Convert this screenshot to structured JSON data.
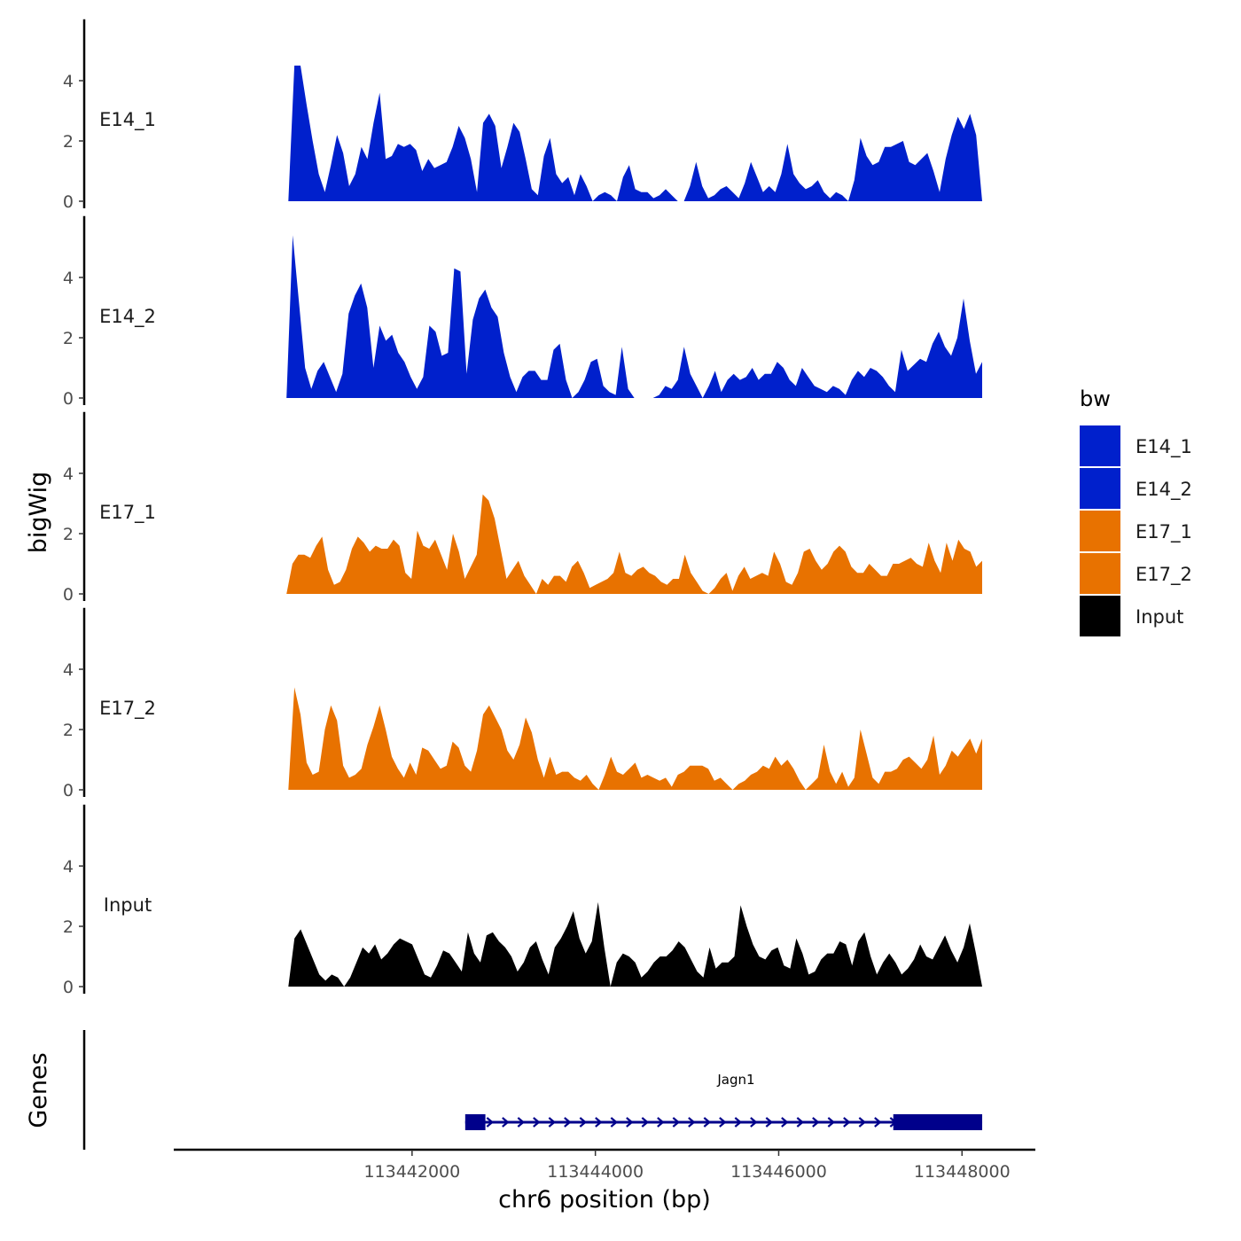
{
  "chart_data": {
    "type": "area",
    "y_axis_title": "bigWig",
    "x_axis_title": "chr6 position (bp)",
    "genes_axis_title": "Genes",
    "xlim": [
      113439400,
      113448800
    ],
    "x_ticks": [
      113442000,
      113444000,
      113446000,
      113448000
    ],
    "x_tick_labels": [
      "113442000",
      "113444000",
      "113446000",
      "113448000"
    ],
    "ylim": [
      0,
      5.8
    ],
    "y_ticks": [
      0,
      2,
      4
    ],
    "y_tick_labels": [
      "0",
      "2",
      "4"
    ],
    "colors": {
      "E14_1": "#0020CC",
      "E14_2": "#0020CC",
      "E17_1": "#E87200",
      "E17_2": "#E87200",
      "Input": "#000000",
      "gene": "#00008B"
    },
    "legend": {
      "title": "bw",
      "entries": [
        {
          "label": "E14_1",
          "color": "#0020CC"
        },
        {
          "label": "E14_2",
          "color": "#0020CC"
        },
        {
          "label": "E17_1",
          "color": "#E87200"
        },
        {
          "label": "E17_2",
          "color": "#E87200"
        },
        {
          "label": "Input",
          "color": "#000000"
        }
      ]
    },
    "series": [
      {
        "name": "E14_1",
        "x_start": 113440650,
        "x_end": 113448220,
        "values": [
          0.0,
          4.5,
          4.5,
          3.2,
          2.0,
          0.9,
          0.3,
          1.2,
          2.2,
          1.6,
          0.5,
          0.9,
          1.8,
          1.4,
          2.6,
          3.6,
          1.4,
          1.5,
          1.9,
          1.8,
          1.9,
          1.7,
          1.0,
          1.4,
          1.1,
          1.2,
          1.3,
          1.8,
          2.5,
          2.1,
          1.4,
          0.3,
          2.6,
          2.9,
          2.5,
          1.1,
          1.8,
          2.6,
          2.3,
          1.4,
          0.4,
          0.2,
          1.5,
          2.1,
          0.9,
          0.6,
          0.8,
          0.2,
          0.9,
          0.5,
          0.0,
          0.2,
          0.3,
          0.2,
          0.0,
          0.8,
          1.2,
          0.4,
          0.3,
          0.3,
          0.1,
          0.2,
          0.4,
          0.2,
          0.0,
          0.0,
          0.5,
          1.3,
          0.5,
          0.1,
          0.2,
          0.4,
          0.5,
          0.3,
          0.1,
          0.6,
          1.3,
          0.8,
          0.3,
          0.5,
          0.3,
          0.9,
          1.9,
          0.9,
          0.6,
          0.4,
          0.5,
          0.7,
          0.3,
          0.1,
          0.3,
          0.2,
          0.0,
          0.7,
          2.1,
          1.5,
          1.2,
          1.3,
          1.8,
          1.8,
          1.9,
          2.0,
          1.3,
          1.2,
          1.4,
          1.6,
          1.0,
          0.3,
          1.4,
          2.2,
          2.8,
          2.4,
          2.9,
          2.2,
          0.0
        ]
      },
      {
        "name": "E14_2",
        "x_start": 113440630,
        "x_end": 113448220,
        "values": [
          0.0,
          5.4,
          3.2,
          1.0,
          0.3,
          0.9,
          1.2,
          0.7,
          0.2,
          0.8,
          2.8,
          3.4,
          3.8,
          3.0,
          1.0,
          2.4,
          1.9,
          2.1,
          1.5,
          1.2,
          0.7,
          0.3,
          0.7,
          2.4,
          2.2,
          1.4,
          1.5,
          4.3,
          4.2,
          0.8,
          2.6,
          3.3,
          3.6,
          3.0,
          2.7,
          1.5,
          0.7,
          0.2,
          0.7,
          0.9,
          0.9,
          0.6,
          0.6,
          1.6,
          1.8,
          0.6,
          0.0,
          0.2,
          0.6,
          1.2,
          1.3,
          0.4,
          0.2,
          0.1,
          1.7,
          0.3,
          0.0,
          0.0,
          0.0,
          0.0,
          0.1,
          0.4,
          0.3,
          0.6,
          1.7,
          0.8,
          0.4,
          0.0,
          0.4,
          0.9,
          0.2,
          0.6,
          0.8,
          0.6,
          0.7,
          1.0,
          0.6,
          0.8,
          0.8,
          1.2,
          1.0,
          0.6,
          0.4,
          1.0,
          0.7,
          0.4,
          0.3,
          0.2,
          0.4,
          0.3,
          0.1,
          0.6,
          0.9,
          0.7,
          1.0,
          0.9,
          0.7,
          0.4,
          0.2,
          1.6,
          0.9,
          1.1,
          1.3,
          1.2,
          1.8,
          2.2,
          1.7,
          1.4,
          2.0,
          3.3,
          1.9,
          0.8,
          1.2
        ]
      },
      {
        "name": "E17_1",
        "x_start": 113440630,
        "x_end": 113448220,
        "values": [
          0.0,
          1.0,
          1.3,
          1.3,
          1.2,
          1.6,
          1.9,
          0.8,
          0.3,
          0.4,
          0.8,
          1.5,
          1.9,
          1.7,
          1.4,
          1.6,
          1.5,
          1.5,
          1.8,
          1.6,
          0.7,
          0.5,
          2.1,
          1.6,
          1.5,
          1.8,
          1.3,
          0.8,
          2.0,
          1.4,
          0.5,
          0.9,
          1.3,
          3.3,
          3.1,
          2.5,
          1.5,
          0.5,
          0.8,
          1.1,
          0.6,
          0.3,
          0.0,
          0.5,
          0.3,
          0.6,
          0.6,
          0.4,
          0.9,
          1.1,
          0.7,
          0.2,
          0.3,
          0.4,
          0.5,
          0.7,
          1.4,
          0.7,
          0.6,
          0.8,
          0.9,
          0.7,
          0.6,
          0.4,
          0.3,
          0.5,
          0.5,
          1.3,
          0.7,
          0.4,
          0.1,
          0.0,
          0.2,
          0.5,
          0.7,
          0.1,
          0.6,
          0.9,
          0.5,
          0.6,
          0.7,
          0.6,
          1.4,
          1.0,
          0.4,
          0.3,
          0.7,
          1.4,
          1.5,
          1.1,
          0.8,
          1.0,
          1.4,
          1.6,
          1.4,
          0.9,
          0.7,
          0.7,
          1.0,
          0.8,
          0.6,
          0.6,
          1.0,
          1.0,
          1.1,
          1.2,
          1.0,
          0.9,
          1.7,
          1.1,
          0.7,
          1.7,
          1.1,
          1.8,
          1.5,
          1.4,
          0.9,
          1.1
        ]
      },
      {
        "name": "E17_2",
        "x_start": 113440650,
        "x_end": 113448220,
        "values": [
          0.0,
          3.4,
          2.5,
          0.9,
          0.5,
          0.6,
          2.0,
          2.8,
          2.3,
          0.8,
          0.4,
          0.5,
          0.7,
          1.5,
          2.1,
          2.8,
          2.0,
          1.1,
          0.7,
          0.4,
          0.9,
          0.5,
          1.4,
          1.3,
          1.0,
          0.7,
          0.8,
          1.6,
          1.4,
          0.8,
          0.6,
          1.3,
          2.5,
          2.8,
          2.4,
          2.0,
          1.3,
          1.0,
          1.5,
          2.4,
          1.9,
          1.0,
          0.4,
          1.1,
          0.5,
          0.6,
          0.6,
          0.4,
          0.3,
          0.5,
          0.2,
          0.0,
          0.5,
          1.1,
          0.6,
          0.5,
          0.7,
          0.9,
          0.4,
          0.5,
          0.4,
          0.3,
          0.4,
          0.1,
          0.5,
          0.6,
          0.8,
          0.8,
          0.8,
          0.7,
          0.3,
          0.4,
          0.2,
          0.0,
          0.2,
          0.3,
          0.5,
          0.6,
          0.8,
          0.7,
          1.1,
          0.8,
          1.0,
          0.7,
          0.3,
          0.0,
          0.2,
          0.4,
          1.5,
          0.6,
          0.2,
          0.6,
          0.1,
          0.4,
          2.0,
          1.2,
          0.4,
          0.2,
          0.6,
          0.6,
          0.7,
          1.0,
          1.1,
          0.9,
          0.7,
          1.0,
          1.8,
          0.5,
          0.8,
          1.3,
          1.1,
          1.4,
          1.7,
          1.2,
          1.7
        ]
      },
      {
        "name": "Input",
        "x_start": 113440650,
        "x_end": 113448220,
        "values": [
          0.0,
          1.6,
          1.9,
          1.4,
          0.9,
          0.4,
          0.2,
          0.4,
          0.3,
          0.0,
          0.3,
          0.8,
          1.3,
          1.1,
          1.4,
          0.9,
          1.1,
          1.4,
          1.6,
          1.5,
          1.4,
          0.9,
          0.4,
          0.3,
          0.7,
          1.2,
          1.1,
          0.8,
          0.5,
          1.8,
          1.1,
          0.8,
          1.7,
          1.8,
          1.5,
          1.3,
          1.0,
          0.5,
          0.8,
          1.3,
          1.5,
          0.9,
          0.4,
          1.3,
          1.6,
          2.0,
          2.5,
          1.6,
          1.1,
          1.5,
          2.8,
          1.3,
          0.0,
          0.8,
          1.1,
          1.0,
          0.8,
          0.3,
          0.5,
          0.8,
          1.0,
          1.0,
          1.2,
          1.5,
          1.3,
          0.9,
          0.5,
          0.3,
          1.3,
          0.6,
          0.8,
          0.8,
          1.0,
          2.7,
          2.0,
          1.4,
          1.0,
          0.9,
          1.2,
          1.3,
          0.7,
          0.6,
          1.6,
          1.1,
          0.4,
          0.5,
          0.9,
          1.1,
          1.1,
          1.5,
          1.4,
          0.7,
          1.5,
          1.8,
          1.0,
          0.4,
          0.8,
          1.1,
          0.8,
          0.4,
          0.6,
          0.9,
          1.4,
          1.0,
          0.9,
          1.3,
          1.7,
          1.2,
          0.8,
          1.3,
          2.1,
          1.1,
          0.0
        ]
      }
    ],
    "genes": [
      {
        "name": "Jagn1",
        "strand": "+",
        "start": 113442580,
        "end": 113448220,
        "exons": [
          [
            113442580,
            113442800
          ],
          [
            113447250,
            113448220
          ]
        ]
      }
    ]
  }
}
